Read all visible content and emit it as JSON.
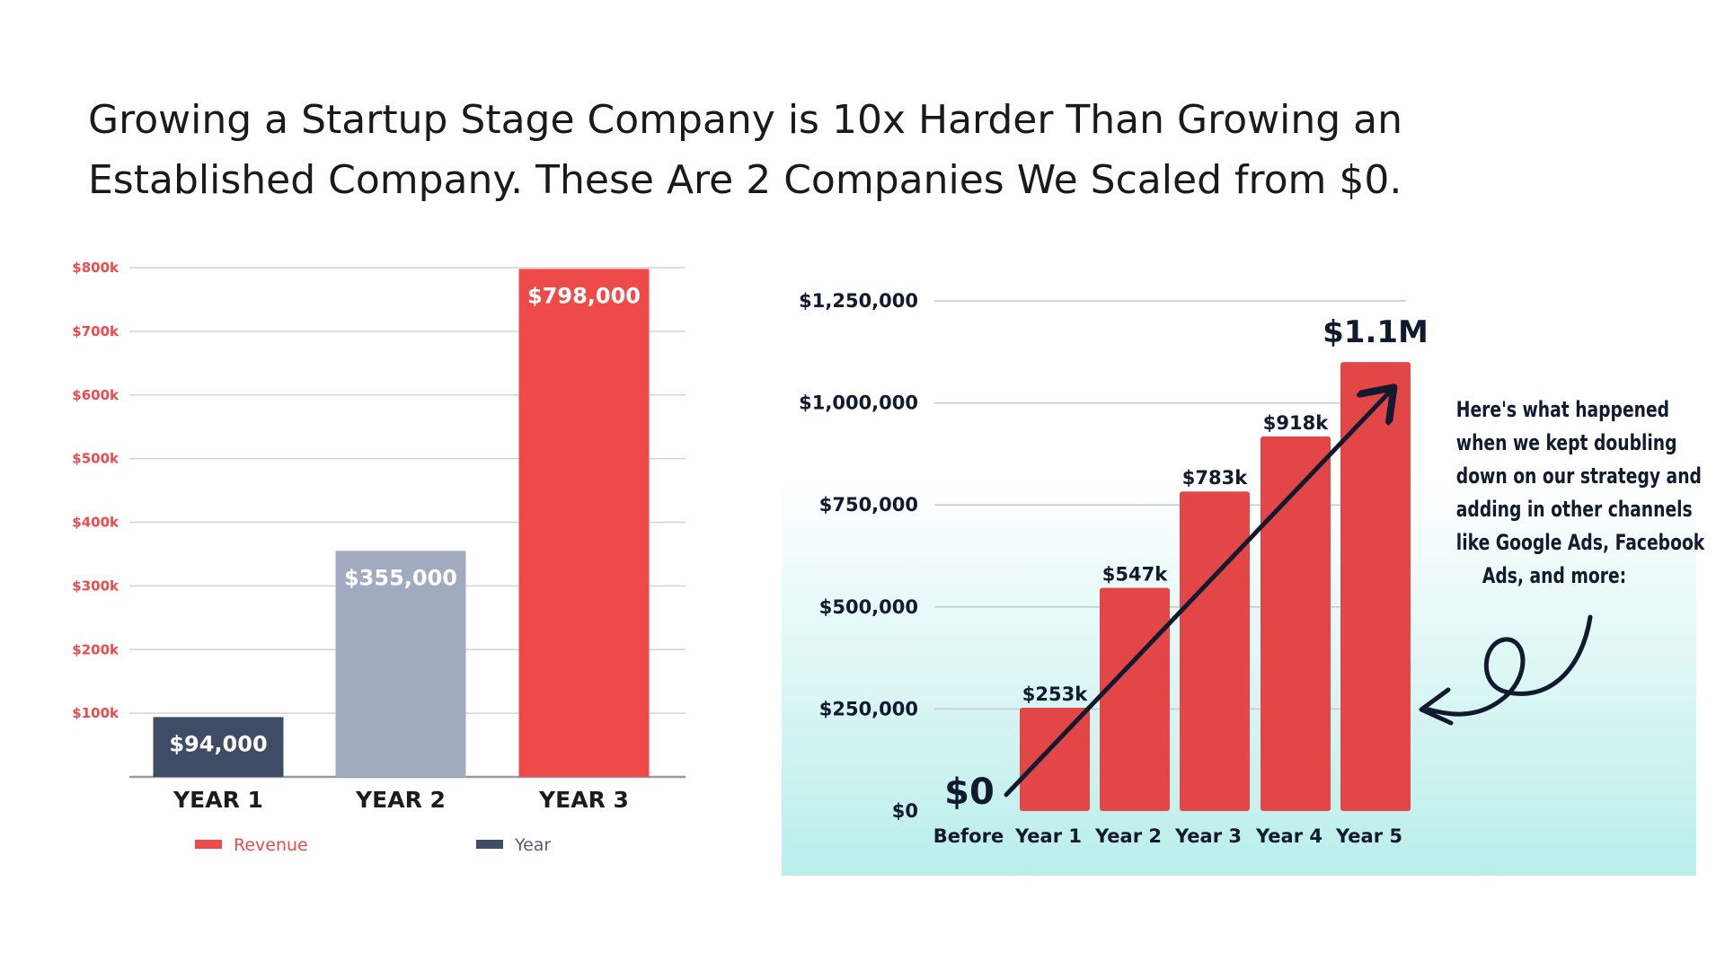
{
  "headline": {
    "line1": "Growing a Startup Stage Company is 10x Harder Than Growing an",
    "line2": "Established Company. These Are 2 Companies We Scaled from $0."
  },
  "callout": {
    "lines": [
      "Here's what happened",
      "when we kept doubling",
      "down on our strategy and",
      "adding in other channels",
      "like Google Ads, Facebook",
      "Ads, and more:"
    ]
  },
  "colors": {
    "red": "#ee4a4a",
    "navy": "#3e4c66",
    "gray_blue": "#a2aac0",
    "bar_red": "#e34646",
    "panel_top": "#ffffff",
    "panel_bottom": "#b9eeea",
    "dark": "#111a2e",
    "grid": "#d3d3d3"
  },
  "chart_data": [
    {
      "type": "bar",
      "categories": [
        "YEAR 1",
        "YEAR 2",
        "YEAR 3"
      ],
      "values": [
        94000,
        355000,
        798000
      ],
      "value_labels": [
        "$94,000",
        "$355,000",
        "$798,000"
      ],
      "bar_colors": [
        "#3e4c66",
        "#a2aac0",
        "#ee4a4a"
      ],
      "ylim": [
        0,
        800000
      ],
      "yticks": [
        {
          "v": 100000,
          "label": "$100k"
        },
        {
          "v": 200000,
          "label": "$200k"
        },
        {
          "v": 300000,
          "label": "$300k"
        },
        {
          "v": 400000,
          "label": "$400k"
        },
        {
          "v": 500000,
          "label": "$500k"
        },
        {
          "v": 600000,
          "label": "$600k"
        },
        {
          "v": 700000,
          "label": "$700k"
        },
        {
          "v": 800000,
          "label": "$800k"
        }
      ],
      "legend": [
        {
          "name": "Revenue",
          "color": "#ee4a4a"
        },
        {
          "name": "Year",
          "color": "#3e4c66"
        }
      ],
      "legend_position": "bottom",
      "grid": true
    },
    {
      "type": "bar",
      "categories": [
        "Before",
        "Year 1",
        "Year 2",
        "Year 3",
        "Year 4",
        "Year 5"
      ],
      "values": [
        0,
        253000,
        547000,
        783000,
        918000,
        1100000
      ],
      "value_labels": [
        "$0",
        "$253k",
        "$547k",
        "$783k",
        "$918k",
        "$1.1M"
      ],
      "ylim": [
        0,
        1250000
      ],
      "yticks": [
        {
          "v": 0,
          "label": "$0"
        },
        {
          "v": 250000,
          "label": "$250,000"
        },
        {
          "v": 500000,
          "label": "$500,000"
        },
        {
          "v": 750000,
          "label": "$750,000"
        },
        {
          "v": 1000000,
          "label": "$1,000,000"
        },
        {
          "v": 1250000,
          "label": "$1,250,000"
        }
      ],
      "grid": true,
      "trend_arrow": true
    }
  ]
}
